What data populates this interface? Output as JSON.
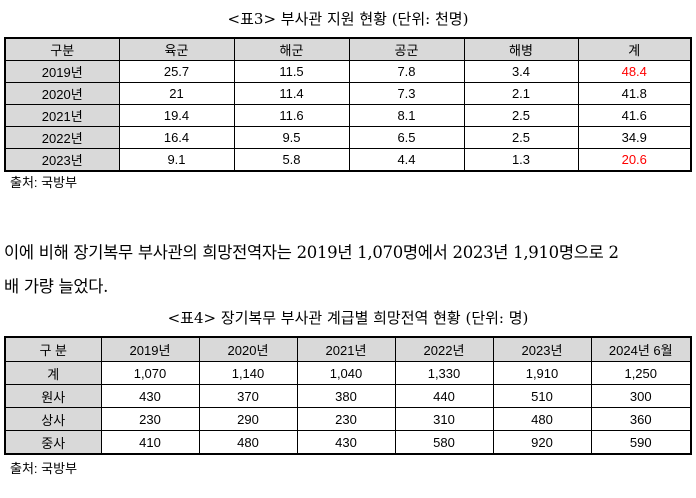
{
  "table3": {
    "caption": "<표3> 부사관 지원 현황 (단위: 천명)",
    "headers": [
      "구분",
      "육군",
      "해군",
      "공군",
      "해병",
      "계"
    ],
    "rows": [
      [
        "2019년",
        "25.7",
        "11.5",
        "7.8",
        "3.4",
        "48.4"
      ],
      [
        "2020년",
        "21",
        "11.4",
        "7.3",
        "2.1",
        "41.8"
      ],
      [
        "2021년",
        "19.4",
        "11.6",
        "8.1",
        "2.5",
        "41.6"
      ],
      [
        "2022년",
        "16.4",
        "9.5",
        "6.5",
        "2.5",
        "34.9"
      ],
      [
        "2023년",
        "9.1",
        "5.8",
        "4.4",
        "1.3",
        "20.6"
      ]
    ],
    "source": "출처: 국방부",
    "highlight_color": "#ff0000"
  },
  "paragraph": {
    "line1": "이에 비해 장기복무 부사관의 희망전역자는 2019년 1,070명에서 2023년 1,910명으로 2",
    "line2": "배 가량 늘었다."
  },
  "table4": {
    "caption": "<표4> 장기복무 부사관 계급별 희망전역 현황 (단위: 명)",
    "headers": [
      "구 분",
      "2019년",
      "2020년",
      "2021년",
      "2022년",
      "2023년",
      "2024년 6월"
    ],
    "rows": [
      [
        "계",
        "1,070",
        "1,140",
        "1,040",
        "1,330",
        "1,910",
        "1,250"
      ],
      [
        "원사",
        "430",
        "370",
        "380",
        "440",
        "510",
        "300"
      ],
      [
        "상사",
        "230",
        "290",
        "230",
        "310",
        "480",
        "360"
      ],
      [
        "중사",
        "410",
        "480",
        "430",
        "580",
        "920",
        "590"
      ]
    ],
    "source": "출처: 국방부"
  }
}
